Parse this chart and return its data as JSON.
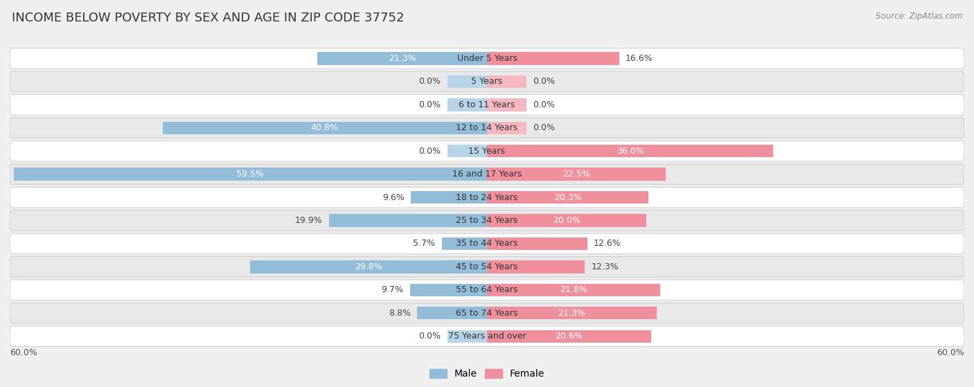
{
  "title": "INCOME BELOW POVERTY BY SEX AND AGE IN ZIP CODE 37752",
  "source": "Source: ZipAtlas.com",
  "categories": [
    "Under 5 Years",
    "5 Years",
    "6 to 11 Years",
    "12 to 14 Years",
    "15 Years",
    "16 and 17 Years",
    "18 to 24 Years",
    "25 to 34 Years",
    "35 to 44 Years",
    "45 to 54 Years",
    "55 to 64 Years",
    "65 to 74 Years",
    "75 Years and over"
  ],
  "male_values": [
    21.3,
    0.0,
    0.0,
    40.8,
    0.0,
    59.5,
    9.6,
    19.9,
    5.7,
    29.8,
    9.7,
    8.8,
    0.0
  ],
  "female_values": [
    16.6,
    0.0,
    0.0,
    0.0,
    36.0,
    22.5,
    20.3,
    20.0,
    12.6,
    12.3,
    21.8,
    21.3,
    20.6
  ],
  "male_color": "#92bcd8",
  "female_color": "#f0909c",
  "male_stub_color": "#b8d4e8",
  "female_stub_color": "#f5b8c0",
  "background_color": "#f0f0f0",
  "row_bg_light": "#ffffff",
  "row_bg_dark": "#e8e8e8",
  "row_border": "#d0d0d0",
  "max_val": 60.0,
  "stub_val": 5.0,
  "title_fontsize": 13,
  "label_fontsize": 9,
  "value_fontsize": 9,
  "tick_fontsize": 9
}
